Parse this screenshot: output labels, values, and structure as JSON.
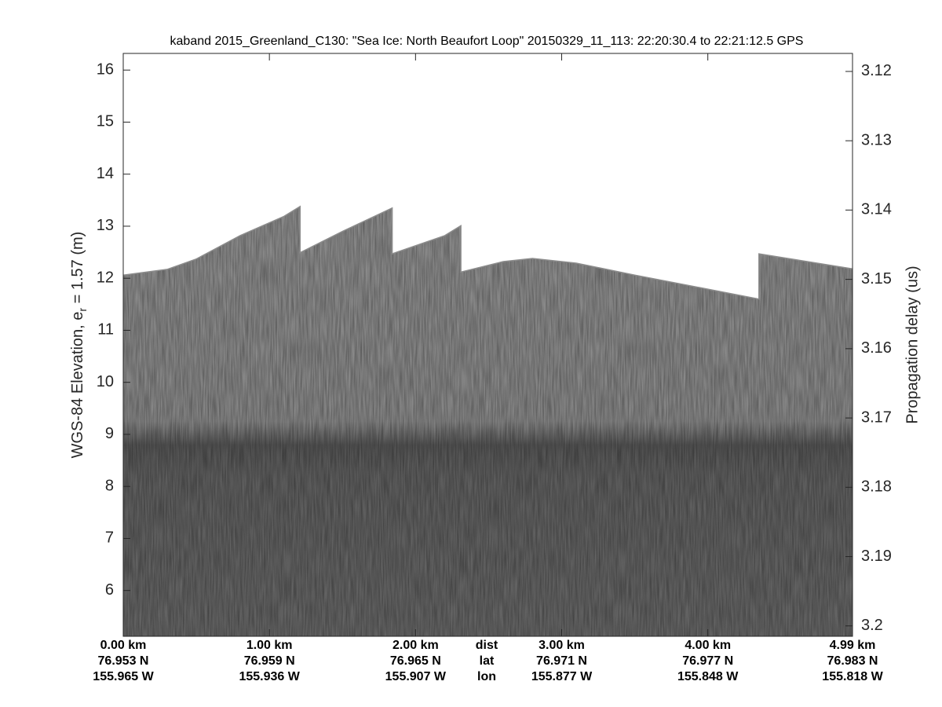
{
  "chart_data": {
    "type": "echogram",
    "title": "kaband 2015_Greenland_C130: \"Sea Ice: North Beaufort Loop\"  20150329_11_113: 22:20:30.4 to 22:21:12.5 GPS",
    "ylabel": [
      "WGS-84 Elevation, e",
      "r",
      " = 1.57 (m)"
    ],
    "y2label": "Propagation delay (us)",
    "xlim": [
      0,
      4.99
    ],
    "ylim": [
      5.12,
      16.32
    ],
    "y2lim": [
      3.1174,
      3.2015
    ],
    "y2_inverted": true,
    "yticks": [
      6,
      7,
      8,
      9,
      10,
      11,
      12,
      13,
      14,
      15,
      16
    ],
    "y2ticks": [
      3.12,
      3.13,
      3.14,
      3.15,
      3.16,
      3.17,
      3.18,
      3.19,
      3.2
    ],
    "xticks": [
      {
        "value": 0,
        "label": "0.00 km"
      },
      {
        "value": 1,
        "label": "1.00 km"
      },
      {
        "value": 2,
        "label": "2.00 km"
      },
      {
        "value": 3,
        "label": "3.00 km"
      },
      {
        "value": 4,
        "label": "4.00 km"
      },
      {
        "value": 4.99,
        "label": "4.99 km"
      }
    ],
    "lat_labels": [
      "76.953 N",
      "76.959 N",
      "76.965 N",
      "76.971 N",
      "76.977 N",
      "76.983 N"
    ],
    "lon_labels": [
      "155.965 W",
      "155.936 W",
      "155.907 W",
      "155.877 W",
      "155.848 W",
      "155.818 W"
    ],
    "row_labels": [
      "dist",
      "lat",
      "lon"
    ],
    "series": [
      {
        "name": "surface",
        "color": "#8c8c8c",
        "x": [
          0,
          0.3,
          0.5,
          0.8,
          1.1,
          1.21,
          1.21,
          1.5,
          1.84,
          1.84,
          2.2,
          2.31,
          2.31,
          2.6,
          2.8,
          3.1,
          3.5,
          4.0,
          4.35,
          4.35,
          4.99
        ],
        "values": [
          12.06,
          12.17,
          12.37,
          12.82,
          13.19,
          13.38,
          12.49,
          12.9,
          13.35,
          12.47,
          12.82,
          13.01,
          12.12,
          12.32,
          12.38,
          12.29,
          12.06,
          11.79,
          11.6,
          12.47,
          12.18
        ]
      }
    ]
  }
}
